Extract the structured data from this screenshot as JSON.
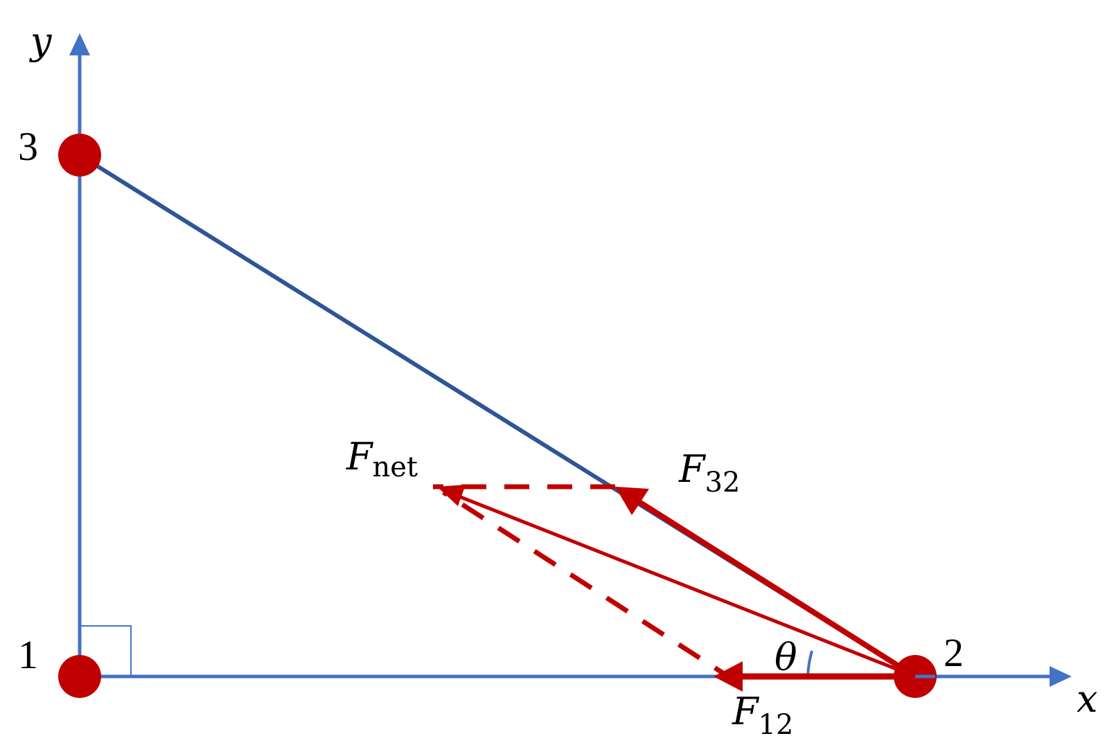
{
  "axes": {
    "x": "x",
    "y": "y"
  },
  "charges": [
    {
      "label": "1"
    },
    {
      "label": "2"
    },
    {
      "label": "3"
    }
  ],
  "vectors": [
    {
      "symbol": "F",
      "subscript": "net"
    },
    {
      "symbol": "F",
      "subscript": "32"
    },
    {
      "symbol": "F",
      "subscript": "12"
    }
  ],
  "angle": "θ"
}
